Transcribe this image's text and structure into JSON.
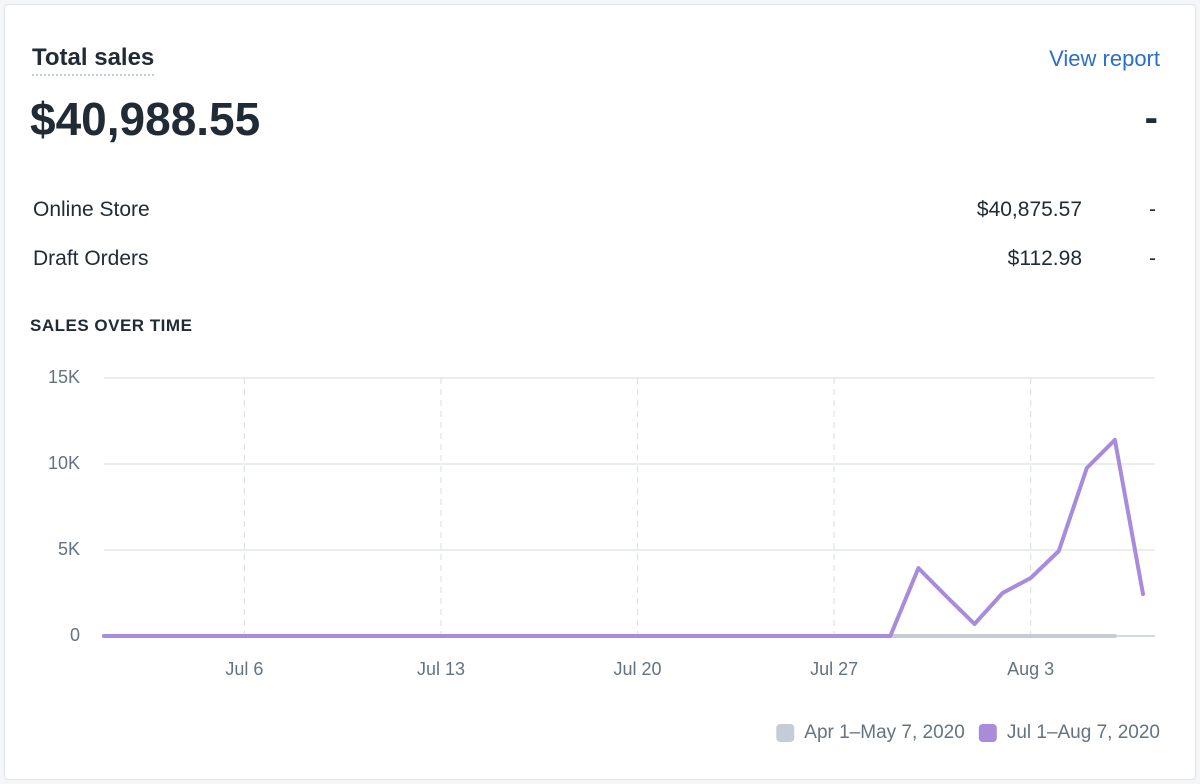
{
  "header": {
    "title": "Total sales",
    "link": "View report",
    "total": "$40,988.55",
    "total_change": "-"
  },
  "breakdown": [
    {
      "label": "Online Store",
      "value": "$40,875.57",
      "change": "-"
    },
    {
      "label": "Draft Orders",
      "value": "$112.98",
      "change": "-"
    }
  ],
  "chart_data": {
    "type": "line",
    "title": "SALES OVER TIME",
    "categories": [
      null,
      null,
      null,
      null,
      null,
      "Jul 6",
      null,
      null,
      null,
      null,
      null,
      null,
      "Jul 13",
      null,
      null,
      null,
      null,
      null,
      null,
      "Jul 20",
      null,
      null,
      null,
      null,
      null,
      null,
      "Jul 27",
      null,
      null,
      null,
      null,
      null,
      null,
      "Aug 3",
      null,
      null,
      null,
      null
    ],
    "series": [
      {
        "name": "Apr 1–May 7, 2020",
        "color": "#c4cdd5",
        "values": [
          0,
          0,
          0,
          0,
          0,
          0,
          0,
          0,
          0,
          0,
          0,
          0,
          0,
          0,
          0,
          0,
          0,
          0,
          0,
          0,
          0,
          0,
          0,
          0,
          0,
          0,
          0,
          0,
          0,
          0,
          0,
          0,
          0,
          0,
          0,
          0,
          0,
          null
        ]
      },
      {
        "name": "Jul 1–Aug 7, 2020",
        "color": "#a88bdb",
        "values": [
          0,
          0,
          0,
          0,
          0,
          0,
          0,
          0,
          0,
          0,
          0,
          0,
          0,
          0,
          0,
          0,
          0,
          0,
          0,
          0,
          0,
          0,
          0,
          0,
          0,
          0,
          0,
          0,
          0,
          3950,
          2300,
          700,
          2500,
          3370,
          4940,
          9770,
          11400,
          2440
        ]
      }
    ],
    "ylim": [
      0,
      15000
    ],
    "yticks": [
      0,
      {
        "value": 5000,
        "label": "5K"
      },
      {
        "value": 10000,
        "label": "10K"
      },
      {
        "value": 15000,
        "label": "15K"
      }
    ],
    "grid": true,
    "legend": "bottom-right"
  }
}
